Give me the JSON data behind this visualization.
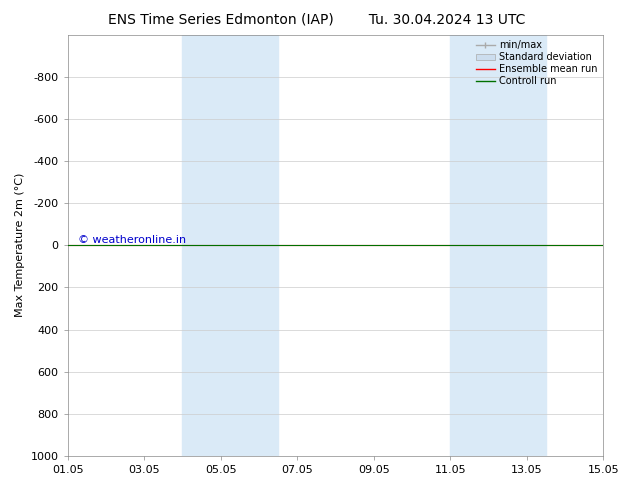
{
  "title_left": "ENS Time Series Edmonton (IAP)",
  "title_right": "Tu. 30.04.2024 13 UTC",
  "ylabel": "Max Temperature 2m (°C)",
  "ylim_bottom": 1000,
  "ylim_top": -1000,
  "yticks": [
    -800,
    -600,
    -400,
    -200,
    0,
    200,
    400,
    600,
    800,
    1000
  ],
  "xlim": [
    0,
    14
  ],
  "xtick_labels": [
    "01.05",
    "03.05",
    "05.05",
    "07.05",
    "09.05",
    "11.05",
    "13.05",
    "15.05"
  ],
  "xtick_positions": [
    0,
    2,
    4,
    6,
    8,
    10,
    12,
    14
  ],
  "shaded_bands": [
    [
      3.0,
      4.5
    ],
    [
      4.5,
      5.5
    ],
    [
      10.0,
      11.5
    ],
    [
      11.5,
      12.5
    ]
  ],
  "band_color": "#daeaf7",
  "line_y": 0,
  "ensemble_mean_color": "#ff0000",
  "control_run_color": "#007000",
  "copyright_text": "© weatheronline.in",
  "copyright_color": "#0000cc",
  "legend_entries": [
    "min/max",
    "Standard deviation",
    "Ensemble mean run",
    "Controll run"
  ],
  "legend_minmax_color": "#aaaaaa",
  "legend_std_color": "#ccddee",
  "background_color": "#ffffff",
  "grid_color": "#cccccc",
  "title_fontsize": 10,
  "label_fontsize": 8,
  "tick_fontsize": 8,
  "copyright_fontsize": 8
}
